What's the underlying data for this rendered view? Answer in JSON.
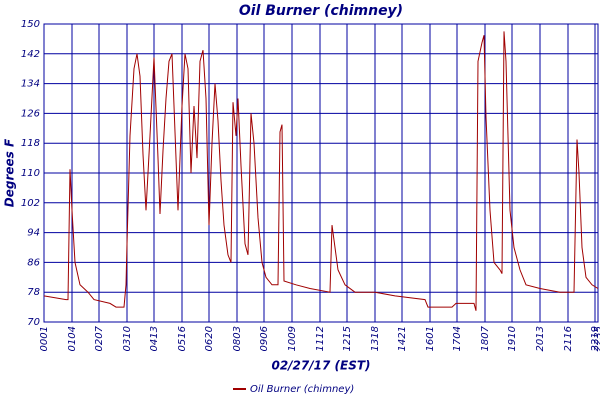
{
  "chart_data": {
    "type": "line",
    "title": "Oil Burner (chimney)",
    "ylabel": "Degrees F",
    "xlabel": "02/27/17 (EST)",
    "ylim": [
      70,
      150
    ],
    "yticks": [
      70,
      78,
      86,
      94,
      102,
      110,
      118,
      126,
      134,
      142,
      150
    ],
    "xlim": [
      0,
      554
    ],
    "xticks": [
      {
        "value": 0,
        "label": "0001"
      },
      {
        "value": 28,
        "label": "0104"
      },
      {
        "value": 55,
        "label": "0207"
      },
      {
        "value": 83,
        "label": "0310"
      },
      {
        "value": 110,
        "label": "0413"
      },
      {
        "value": 138,
        "label": "0516"
      },
      {
        "value": 165,
        "label": "0620"
      },
      {
        "value": 193,
        "label": "0803"
      },
      {
        "value": 220,
        "label": "0906"
      },
      {
        "value": 248,
        "label": "1009"
      },
      {
        "value": 276,
        "label": "1112"
      },
      {
        "value": 303,
        "label": "1215"
      },
      {
        "value": 331,
        "label": "1318"
      },
      {
        "value": 358,
        "label": "1421"
      },
      {
        "value": 386,
        "label": "1601"
      },
      {
        "value": 413,
        "label": "1704"
      },
      {
        "value": 441,
        "label": "1807"
      },
      {
        "value": 468,
        "label": "1910"
      },
      {
        "value": 496,
        "label": "2013"
      },
      {
        "value": 524,
        "label": "2116"
      },
      {
        "value": 551,
        "label": "2219"
      },
      {
        "value": 554,
        "label": "2235"
      }
    ],
    "grid": true,
    "x": [
      0,
      22,
      24,
      26,
      28,
      31,
      36,
      44,
      50,
      66,
      72,
      80,
      82,
      83,
      86,
      90,
      93,
      96,
      99,
      102,
      106,
      110,
      114,
      116,
      119,
      122,
      125,
      128,
      131,
      134,
      138,
      141,
      144,
      147,
      150,
      153,
      156,
      159,
      162,
      165,
      168,
      171,
      174,
      177,
      180,
      184,
      187,
      189,
      192,
      194,
      197,
      201,
      204,
      207,
      210,
      214,
      218,
      222,
      228,
      234,
      236,
      238,
      240,
      252,
      266,
      286,
      288,
      290,
      294,
      301,
      311,
      331,
      351,
      381,
      384,
      396,
      408,
      412,
      430,
      432,
      434,
      438,
      440,
      442,
      446,
      450,
      456,
      458,
      460,
      462,
      466,
      470,
      476,
      482,
      496,
      516,
      530,
      533,
      535,
      538,
      542,
      548,
      554
    ],
    "series": [
      {
        "name": "Oil Burner (chimney)",
        "color": "#a00000",
        "values": [
          77,
          76,
          76,
          111,
          100,
          86,
          80,
          78,
          76,
          75,
          74,
          74,
          80,
          91,
          120,
          138,
          142,
          136,
          115,
          100,
          120,
          141,
          114,
          99,
          116,
          130,
          140,
          142,
          121,
          100,
          128,
          142,
          138,
          110,
          128,
          114,
          140,
          143,
          130,
          96,
          118,
          134,
          124,
          108,
          96,
          88,
          86,
          129,
          120,
          130,
          112,
          91,
          88,
          126,
          118,
          98,
          86,
          82,
          80,
          80,
          121,
          123,
          81,
          80,
          79,
          78,
          96,
          92,
          84,
          80,
          78,
          78,
          77,
          76,
          74,
          74,
          74,
          75,
          75,
          73,
          140,
          145,
          147,
          125,
          100,
          86,
          84,
          83,
          148,
          140,
          100,
          90,
          84,
          80,
          79,
          78,
          78,
          119,
          110,
          90,
          82,
          80,
          79
        ]
      }
    ],
    "legend": "bottom"
  }
}
